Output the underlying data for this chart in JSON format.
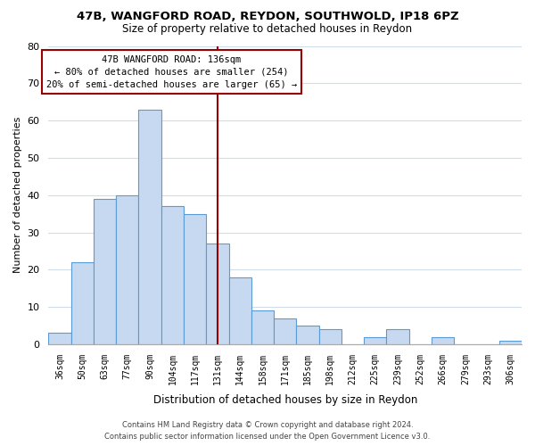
{
  "title": "47B, WANGFORD ROAD, REYDON, SOUTHWOLD, IP18 6PZ",
  "subtitle": "Size of property relative to detached houses in Reydon",
  "xlabel": "Distribution of detached houses by size in Reydon",
  "ylabel": "Number of detached properties",
  "bar_labels": [
    "36sqm",
    "50sqm",
    "63sqm",
    "77sqm",
    "90sqm",
    "104sqm",
    "117sqm",
    "131sqm",
    "144sqm",
    "158sqm",
    "171sqm",
    "185sqm",
    "198sqm",
    "212sqm",
    "225sqm",
    "239sqm",
    "252sqm",
    "266sqm",
    "279sqm",
    "293sqm",
    "306sqm"
  ],
  "bar_values": [
    3,
    22,
    39,
    40,
    63,
    37,
    35,
    27,
    18,
    9,
    7,
    5,
    4,
    0,
    2,
    4,
    0,
    2,
    0,
    0,
    1
  ],
  "bar_color": "#c6d9f0",
  "bar_edge_color": "#5b9bd5",
  "highlight_bar_index": 7,
  "highlight_line_color": "#990000",
  "ylim": [
    0,
    80
  ],
  "yticks": [
    0,
    10,
    20,
    30,
    40,
    50,
    60,
    70,
    80
  ],
  "annotation_title": "47B WANGFORD ROAD: 136sqm",
  "annotation_line1": "← 80% of detached houses are smaller (254)",
  "annotation_line2": "20% of semi-detached houses are larger (65) →",
  "annotation_box_color": "#ffffff",
  "annotation_box_edge": "#990000",
  "footer_line1": "Contains HM Land Registry data © Crown copyright and database right 2024.",
  "footer_line2": "Contains public sector information licensed under the Open Government Licence v3.0.",
  "background_color": "#ffffff",
  "grid_color": "#d0dce8"
}
